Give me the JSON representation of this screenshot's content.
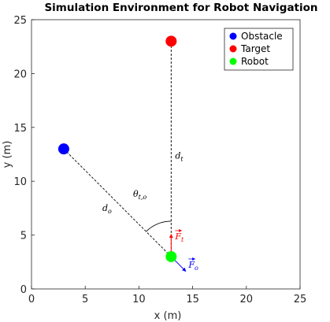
{
  "chart_data": {
    "type": "scatter",
    "title": "Simulation Environment for Robot Navigation",
    "xlabel": "x (m)",
    "ylabel": "y (m)",
    "xlim": [
      0,
      25
    ],
    "ylim": [
      0,
      25
    ],
    "xticks": [
      "0",
      "5",
      "10",
      "15",
      "20",
      "25"
    ],
    "yticks": [
      "0",
      "5",
      "10",
      "15",
      "20",
      "25"
    ],
    "grid": false,
    "legend_position": "top-right",
    "series": [
      {
        "name": "Obstacle",
        "color": "#0000ff",
        "x": [
          3
        ],
        "y": [
          13
        ]
      },
      {
        "name": "Target",
        "color": "#ff0000",
        "x": [
          13
        ],
        "y": [
          23
        ]
      },
      {
        "name": "Robot",
        "color": "#00ff00",
        "x": [
          13
        ],
        "y": [
          3
        ]
      }
    ],
    "annotations": {
      "d_t": {
        "symbol": "d",
        "sub": "t"
      },
      "d_o": {
        "symbol": "d",
        "sub": "o"
      },
      "theta": {
        "symbol": "θ",
        "sub": "t,o"
      },
      "F_t": {
        "symbol": "F",
        "sub": "t",
        "color": "#ff0000"
      },
      "F_o": {
        "symbol": "F",
        "sub": "o",
        "color": "#0000ff"
      }
    }
  }
}
